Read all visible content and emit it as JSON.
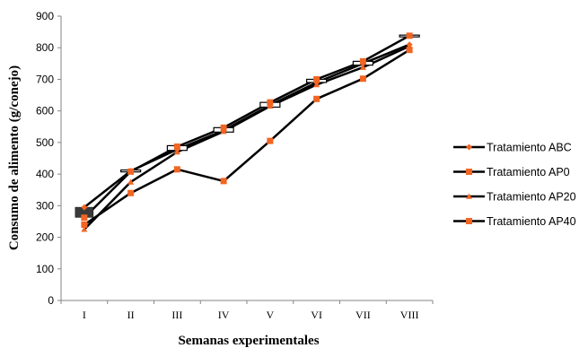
{
  "chart_data": {
    "type": "line",
    "xlabel": "Semanas experimentales",
    "ylabel": "Consumo de alimento (g/conejo)",
    "ylim": [
      0,
      900
    ],
    "yticks": [
      0,
      100,
      200,
      300,
      400,
      500,
      600,
      700,
      800,
      900
    ],
    "categories": [
      "I",
      "II",
      "III",
      "IV",
      "V",
      "VI",
      "VII",
      "VIII"
    ],
    "legend_position": "right",
    "line_color": "#000000",
    "marker_color": "#f26522",
    "series": [
      {
        "name": "Tratamiento ABC",
        "marker": "diamond",
        "values": [
          295,
          410,
          478,
          538,
          618,
          690,
          750,
          810
        ]
      },
      {
        "name": "Tratamiento AP0",
        "marker": "square",
        "values": [
          240,
          340,
          415,
          378,
          505,
          638,
          702,
          793
        ]
      },
      {
        "name": "Tratamiento AP20",
        "marker": "triangle",
        "values": [
          225,
          375,
          470,
          535,
          615,
          683,
          738,
          805
        ]
      },
      {
        "name": "Tratamiento AP40",
        "marker": "square",
        "values": [
          262,
          408,
          487,
          547,
          627,
          700,
          757,
          838
        ]
      }
    ],
    "error_boxes": [
      {
        "category": "I",
        "low": 263,
        "high": 295,
        "style": "filled"
      },
      {
        "category": "II",
        "low": 407,
        "high": 413,
        "style": "outline"
      },
      {
        "category": "III",
        "low": 475,
        "high": 490,
        "style": "outline"
      },
      {
        "category": "IV",
        "low": 533,
        "high": 547,
        "style": "outline"
      },
      {
        "category": "V",
        "low": 612,
        "high": 627,
        "style": "outline"
      },
      {
        "category": "VI",
        "low": 690,
        "high": 700,
        "style": "outline"
      },
      {
        "category": "VII",
        "low": 745,
        "high": 757,
        "style": "outline"
      },
      {
        "category": "VIII",
        "low": 835,
        "high": 840,
        "style": "outline"
      }
    ]
  }
}
